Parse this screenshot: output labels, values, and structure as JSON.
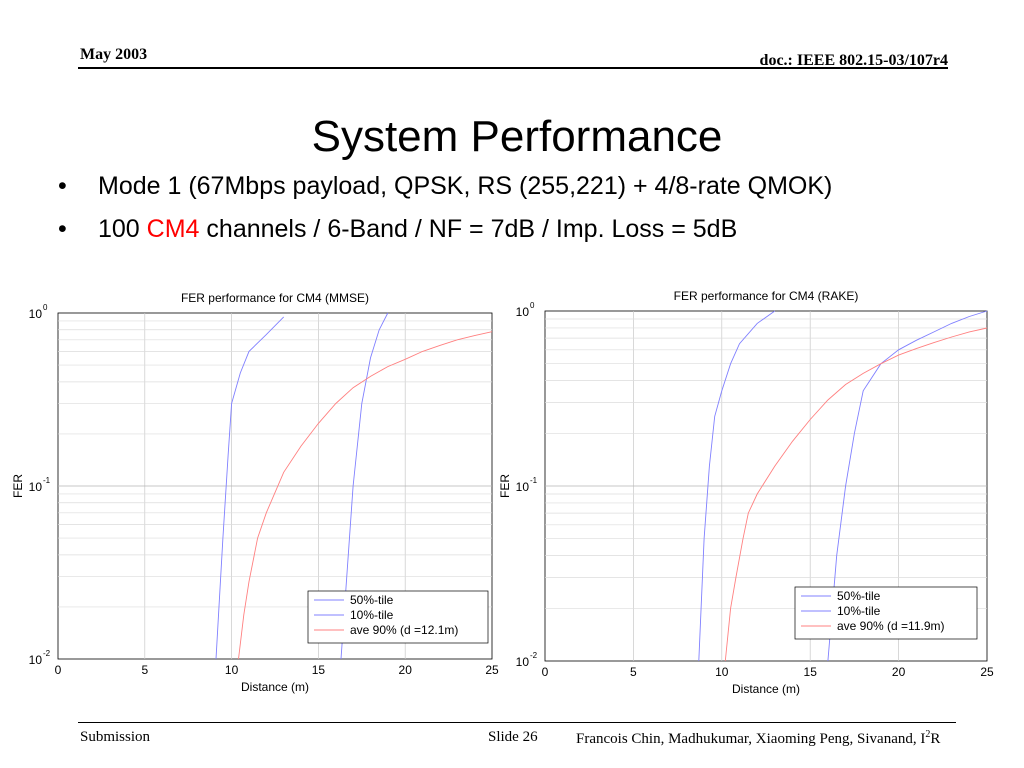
{
  "header": {
    "date": "May 2003",
    "doc": "doc.: IEEE 802.15-03/107r4"
  },
  "title": "System Performance",
  "bullets": [
    {
      "text": "Mode 1 (67Mbps payload, QPSK, RS (255,221) + 4/8-rate QMOK)"
    },
    {
      "pre": "100 ",
      "highlight": "CM4",
      "post": " channels / 6-Band / NF = 7dB / Imp. Loss = 5dB",
      "highlight_color": "#ff0000"
    }
  ],
  "footer": {
    "left": "Submission",
    "slide": "Slide 26",
    "authors": "Francois Chin, Madhukumar, Xiaoming Peng, Sivanand, I",
    "authors_sup": "2",
    "authors_end": "R"
  },
  "chart_data": [
    {
      "type": "line",
      "title": "FER performance for CM4 (MMSE)",
      "xlabel": "Distance (m)",
      "ylabel": "FER",
      "xlim": [
        0,
        25
      ],
      "ylim": [
        0.01,
        1
      ],
      "yscale": "log",
      "xticks": [
        "0",
        "5",
        "10",
        "15",
        "20",
        "25"
      ],
      "yticks": [
        {
          "base": "10",
          "exp": "-2"
        },
        {
          "base": "10",
          "exp": "-1"
        },
        {
          "base": "10",
          "exp": "0"
        }
      ],
      "grid": true,
      "legend_position": "bottom-right",
      "series": [
        {
          "name": "50%-tile",
          "color": "#8080ff",
          "x": [
            16.3,
            17.0,
            17.5,
            18.0,
            18.5,
            19.0
          ],
          "y": [
            0.01,
            0.1,
            0.3,
            0.55,
            0.8,
            1.0
          ]
        },
        {
          "name": "10%-tile",
          "color": "#8080ff",
          "x": [
            9.1,
            9.5,
            9.8,
            10.0,
            10.5,
            11.0,
            12.0,
            13.0
          ],
          "y": [
            0.01,
            0.05,
            0.15,
            0.3,
            0.45,
            0.6,
            0.75,
            0.95
          ]
        },
        {
          "name": "ave 90% (d =12.1m)",
          "color": "#ff8080",
          "x": [
            10.4,
            10.7,
            11.0,
            11.5,
            12.0,
            13.0,
            14.0,
            15.0,
            16.0,
            17.0,
            18.0,
            19.0,
            20.0,
            21.0,
            22.0,
            23.0,
            24.0,
            25.0
          ],
          "y": [
            0.01,
            0.018,
            0.028,
            0.05,
            0.07,
            0.12,
            0.17,
            0.23,
            0.3,
            0.37,
            0.43,
            0.49,
            0.54,
            0.6,
            0.65,
            0.7,
            0.74,
            0.78
          ]
        }
      ]
    },
    {
      "type": "line",
      "title": "FER performance for CM4 (RAKE)",
      "xlabel": "Distance (m)",
      "ylabel": "FER",
      "xlim": [
        0,
        25
      ],
      "ylim": [
        0.01,
        1
      ],
      "yscale": "log",
      "xticks": [
        "0",
        "5",
        "10",
        "15",
        "20",
        "25"
      ],
      "yticks": [
        {
          "base": "10",
          "exp": "-2"
        },
        {
          "base": "10",
          "exp": "-1"
        },
        {
          "base": "10",
          "exp": "0"
        }
      ],
      "grid": true,
      "legend_position": "bottom-right",
      "series": [
        {
          "name": "50%-tile",
          "color": "#8080ff",
          "x": [
            16.0,
            16.5,
            17.0,
            17.5,
            18.0,
            19.0,
            20.0,
            21.0,
            22.0,
            23.0,
            24.0,
            25.0
          ],
          "y": [
            0.01,
            0.04,
            0.1,
            0.2,
            0.35,
            0.5,
            0.6,
            0.68,
            0.76,
            0.85,
            0.93,
            1.0
          ]
        },
        {
          "name": "10%-tile",
          "color": "#8080ff",
          "x": [
            8.7,
            9.0,
            9.3,
            9.6,
            10.0,
            10.5,
            11.0,
            12.0,
            13.0
          ],
          "y": [
            0.01,
            0.05,
            0.13,
            0.25,
            0.35,
            0.5,
            0.65,
            0.85,
            1.0
          ]
        },
        {
          "name": "ave 90% (d =11.9m)",
          "color": "#ff8080",
          "x": [
            10.2,
            10.5,
            10.8,
            11.2,
            11.5,
            12.0,
            13.0,
            14.0,
            15.0,
            16.0,
            17.0,
            18.0,
            19.0,
            20.0,
            21.0,
            22.0,
            23.0,
            24.0,
            25.0
          ],
          "y": [
            0.01,
            0.02,
            0.03,
            0.05,
            0.07,
            0.09,
            0.13,
            0.18,
            0.24,
            0.31,
            0.38,
            0.44,
            0.5,
            0.56,
            0.61,
            0.66,
            0.71,
            0.76,
            0.8
          ]
        }
      ]
    }
  ]
}
